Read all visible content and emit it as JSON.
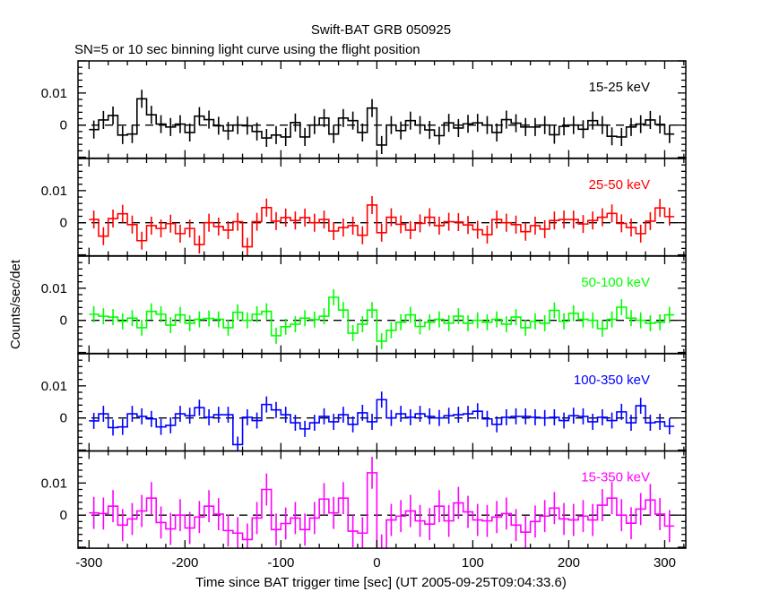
{
  "chart_data": {
    "type": "line",
    "title": "Swift-BAT GRB 050925",
    "subtitle": "SN=5 or 10 sec binning light curve using the flight position",
    "xlabel": "Time since BAT trigger time [sec] (UT 2005-09-25T09:04:33.6)",
    "ylabel": "Counts/sec/det",
    "xlim": [
      -311.5,
      322
    ],
    "ylim": [
      -0.0103,
      0.02
    ],
    "xticks": [
      -300,
      -200,
      -100,
      0,
      100,
      200,
      300
    ],
    "yticks": [
      0,
      0.01
    ],
    "ytick_labels": [
      "0",
      "0.01"
    ],
    "grid": false,
    "zero_line": "dashed",
    "x": [
      -295,
      -285,
      -275,
      -265,
      -255,
      -245,
      -235,
      -225,
      -215,
      -205,
      -195,
      -185,
      -175,
      -165,
      -155,
      -145,
      -135,
      -125,
      -115,
      -105,
      -95,
      -85,
      -75,
      -65,
      -55,
      -45,
      -35,
      -25,
      -15,
      -5,
      5,
      15,
      25,
      35,
      45,
      55,
      65,
      75,
      85,
      95,
      105,
      115,
      125,
      135,
      145,
      155,
      165,
      175,
      185,
      195,
      205,
      215,
      225,
      235,
      245,
      255,
      265,
      275,
      285,
      295,
      305
    ],
    "series": [
      {
        "name": "15-25 keV",
        "color": "#000000",
        "error": 0.0028,
        "values": [
          -0.0014,
          0.0016,
          0.003,
          -0.0031,
          -0.0028,
          0.0082,
          0.0032,
          0.0003,
          -0.0006,
          0.0003,
          -0.0023,
          0.0028,
          0.0017,
          -0.0002,
          -0.0018,
          0,
          -0.0002,
          -0.002,
          -0.004,
          -0.0031,
          -0.0037,
          0.0008,
          -0.0037,
          0,
          0.0022,
          -0.0028,
          0.0022,
          0.0014,
          -0.0023,
          0.0053,
          -0.0062,
          0,
          -0.0017,
          0.0014,
          0,
          -0.0015,
          -0.0033,
          0.0007,
          -0.0009,
          0.0004,
          0.0007,
          0,
          -0.0023,
          0.0017,
          0.0006,
          -0.0006,
          -0.0006,
          0,
          -0.003,
          -0.0004,
          0,
          -0.0013,
          0.0014,
          0,
          -0.0035,
          -0.0037,
          -0.0006,
          0.0003,
          0.0016,
          0.0002,
          -0.0028
        ]
      },
      {
        "name": "25-50 keV",
        "color": "#ff0000",
        "error": 0.0028,
        "values": [
          0.001,
          -0.0042,
          0.0013,
          0.0028,
          -0.0006,
          -0.0056,
          -0.0009,
          -0.0018,
          -0.0003,
          -0.0034,
          -0.0018,
          -0.0068,
          0,
          -0.0012,
          -0.0023,
          0.0003,
          -0.0075,
          0.0003,
          0.0047,
          0.0005,
          0.0016,
          0.0007,
          0.0016,
          0,
          0.001,
          -0.0026,
          -0.0015,
          -0.0009,
          -0.0039,
          0.0055,
          -0.0031,
          0.0017,
          -0.0005,
          -0.0023,
          -0.0002,
          0.0017,
          -0.0009,
          0.0003,
          0.0002,
          -0.0007,
          -0.0022,
          -0.0037,
          0.001,
          0,
          -0.0006,
          -0.0028,
          -0.0009,
          -0.002,
          0.0007,
          0.001,
          0.001,
          -0.0004,
          0.0007,
          0.0017,
          0.0029,
          -0.0002,
          -0.0015,
          -0.0034,
          0.0005,
          0.0046,
          0.0019
        ]
      },
      {
        "name": "50-100 keV",
        "color": "#00ff00",
        "error": 0.0025,
        "values": [
          0.0019,
          0.0013,
          0.001,
          -0.0003,
          0.0007,
          -0.0023,
          0.0028,
          0.0019,
          -0.0015,
          0.0017,
          -0.0009,
          0.0003,
          0.0006,
          0.0003,
          -0.0023,
          0.0025,
          0,
          0.0019,
          0.0028,
          -0.0048,
          -0.002,
          -0.0012,
          0.0007,
          0.0002,
          0.0013,
          0.0072,
          0.0032,
          -0.004,
          -0.0012,
          0.0032,
          -0.0065,
          -0.0031,
          -0.0006,
          0.0017,
          -0.0019,
          -0.0006,
          0.0003,
          -0.0009,
          0.0013,
          -0.0009,
          0,
          -0.0006,
          0.0003,
          -0.0012,
          0.001,
          -0.0023,
          -0.0003,
          -0.0009,
          0.0031,
          -0.0003,
          0.0022,
          0.0003,
          0,
          -0.0026,
          0.0003,
          0.0041,
          0.0007,
          0,
          -0.0009,
          -0.0006,
          0.0017
        ]
      },
      {
        "name": "100-350 keV",
        "color": "#0000ff",
        "error": 0.0025,
        "values": [
          -0.0009,
          0.0013,
          -0.003,
          -0.0028,
          0.0013,
          0.0005,
          -0.0003,
          -0.0028,
          -0.0023,
          0.0013,
          0.0007,
          0.0032,
          0.0002,
          0.001,
          0.001,
          -0.0083,
          0.0002,
          -0.0008,
          0.0042,
          0.0025,
          0.001,
          -0.0015,
          -0.0034,
          -0.0015,
          0.0005,
          -0.0012,
          0.001,
          -0.002,
          0.0016,
          -0.0012,
          0.0057,
          0,
          0.0013,
          0.0002,
          0.0013,
          0.0005,
          0,
          0.0007,
          0.001,
          0.0013,
          0.0021,
          -0.0003,
          -0.002,
          0.0002,
          0.0005,
          0.0005,
          0.0002,
          0,
          0.0002,
          -0.0008,
          0.0007,
          0.0005,
          -0.0012,
          0.0002,
          -0.0008,
          0.0019,
          -0.0015,
          0.0038,
          -0.0015,
          -0.0012,
          -0.0026
        ]
      },
      {
        "name": "15-350 keV",
        "color": "#ff00ff",
        "error": 0.005,
        "values": [
          0.0007,
          0.0005,
          0.0028,
          -0.0031,
          -0.0012,
          0.0013,
          0.0053,
          -0.0023,
          -0.0043,
          0,
          -0.004,
          -0.0006,
          0.0028,
          0.0003,
          -0.0048,
          -0.0056,
          -0.0076,
          -0.0009,
          0.008,
          -0.0045,
          -0.0026,
          -0.0009,
          -0.0045,
          -0.0009,
          0.005,
          0.0007,
          0.0053,
          -0.005,
          -0.0056,
          0.0132,
          -0.011,
          -0.0015,
          -0.0003,
          0.0013,
          -0.0018,
          -0.0028,
          0.0028,
          -0.0018,
          0.0038,
          0.001,
          -0.0015,
          -0.0018,
          -0.0006,
          0.0005,
          -0.0031,
          -0.0053,
          -0.002,
          -0.0003,
          0.0022,
          -0.0012,
          -0.0015,
          -0.0003,
          -0.0015,
          0.0031,
          0.0053,
          0,
          -0.0025,
          0.0019,
          0.0047,
          0.0003,
          -0.0034
        ]
      }
    ]
  }
}
